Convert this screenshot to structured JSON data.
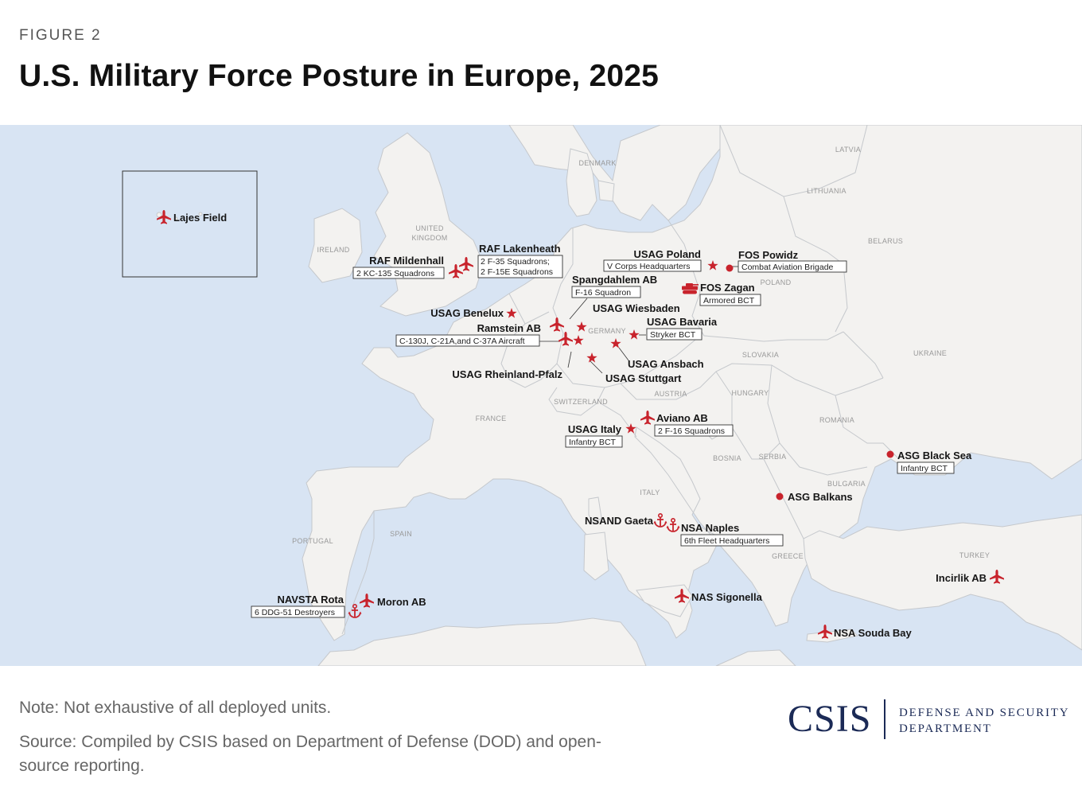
{
  "header": {
    "figure_label": "FIGURE 2",
    "title": "U.S. Military Force Posture in Europe, 2025"
  },
  "map": {
    "colors": {
      "sea": "#d8e4f3",
      "land": "#f3f2f0",
      "border": "#c5c8cc",
      "marker": "#c8232c"
    },
    "legend_icons": {
      "airbase": "plane-icon",
      "army_garrison": "star-icon",
      "rotational_site": "dot-icon",
      "naval": "anchor-icon",
      "armor": "tank-icon"
    },
    "countries": [
      "LATVIA",
      "LITHUANIA",
      "DENMARK",
      "BELARUS",
      "UNITED",
      "KINGDOM",
      "IRELAND",
      "POLAND",
      "GERMANY",
      "UKRAINE",
      "SLOVAKIA",
      "HUNGARY",
      "AUSTRIA",
      "SWITZERLAND",
      "FRANCE",
      "ROMANIA",
      "SERBIA",
      "BOSNIA",
      "BULGARIA",
      "ITALY",
      "SPAIN",
      "PORTUGAL",
      "GREECE",
      "TURKEY"
    ],
    "sites": {
      "lajes": {
        "name": "Lajes Field",
        "icon": "plane-icon"
      },
      "mildenhall": {
        "name": "RAF Mildenhall",
        "unit": "2 KC-135 Squadrons",
        "icon": "plane-icon"
      },
      "lakenheath": {
        "name": "RAF Lakenheath",
        "unit1": "2 F-35 Squadrons;",
        "unit2": "2 F-15E Squadrons",
        "icon": "plane-icon"
      },
      "poland": {
        "name": "USAG Poland",
        "unit": "V Corps Headquarters",
        "icon": "star-icon"
      },
      "powidz": {
        "name": "FOS Powidz",
        "unit": "Combat Aviation Brigade",
        "icon": "dot-icon"
      },
      "zagan": {
        "name": "FOS Zagan",
        "unit": "Armored BCT",
        "icon": "tank-icon"
      },
      "spangdahlem": {
        "name": "Spangdahlem AB",
        "unit": "F-16 Squadron",
        "icon": "plane-icon"
      },
      "benelux": {
        "name": "USAG Benelux",
        "icon": "star-icon"
      },
      "wiesbaden": {
        "name": "USAG Wiesbaden",
        "icon": "star-icon"
      },
      "ramstein": {
        "name": "Ramstein AB",
        "unit": "C-130J, C-21A,and C-37A Aircraft",
        "icon": "plane-icon"
      },
      "bavaria": {
        "name": "USAG Bavaria",
        "unit": "Stryker BCT",
        "icon": "star-icon"
      },
      "ansbach": {
        "name": "USAG Ansbach",
        "icon": "star-icon"
      },
      "rheinland": {
        "name": "USAG Rheinland-Pfalz",
        "icon": "star-icon"
      },
      "stuttgart": {
        "name": "USAG Stuttgart",
        "icon": "star-icon"
      },
      "aviano": {
        "name": "Aviano AB",
        "unit": "2 F-16 Squadrons",
        "icon": "plane-icon"
      },
      "italy": {
        "name": "USAG Italy",
        "unit": "Infantry BCT",
        "icon": "star-icon"
      },
      "black_sea": {
        "name": "ASG Black Sea",
        "unit": "Infantry BCT",
        "icon": "dot-icon"
      },
      "balkans": {
        "name": "ASG Balkans",
        "icon": "dot-icon"
      },
      "gaeta": {
        "name": "NSAND Gaeta",
        "icon": "anchor-icon"
      },
      "naples": {
        "name": "NSA Naples",
        "unit": "6th Fleet Headquarters",
        "icon": "anchor-icon"
      },
      "incirlik": {
        "name": "Incirlik AB",
        "icon": "plane-icon"
      },
      "rota": {
        "name": "NAVSTA Rota",
        "unit": "6 DDG-51 Destroyers",
        "icon": "anchor-icon"
      },
      "moron": {
        "name": "Moron AB",
        "icon": "plane-icon"
      },
      "sigonella": {
        "name": "NAS Sigonella",
        "icon": "plane-icon"
      },
      "souda": {
        "name": "NSA Souda Bay",
        "icon": "plane-icon"
      }
    }
  },
  "footer": {
    "note": "Note: Not exhaustive of all deployed units.",
    "source": "Source: Compiled by CSIS based on Department of Defense (DOD) and open-source reporting.",
    "brand": "CSIS",
    "department": "DEFENSE AND SECURITY DEPARTMENT"
  }
}
